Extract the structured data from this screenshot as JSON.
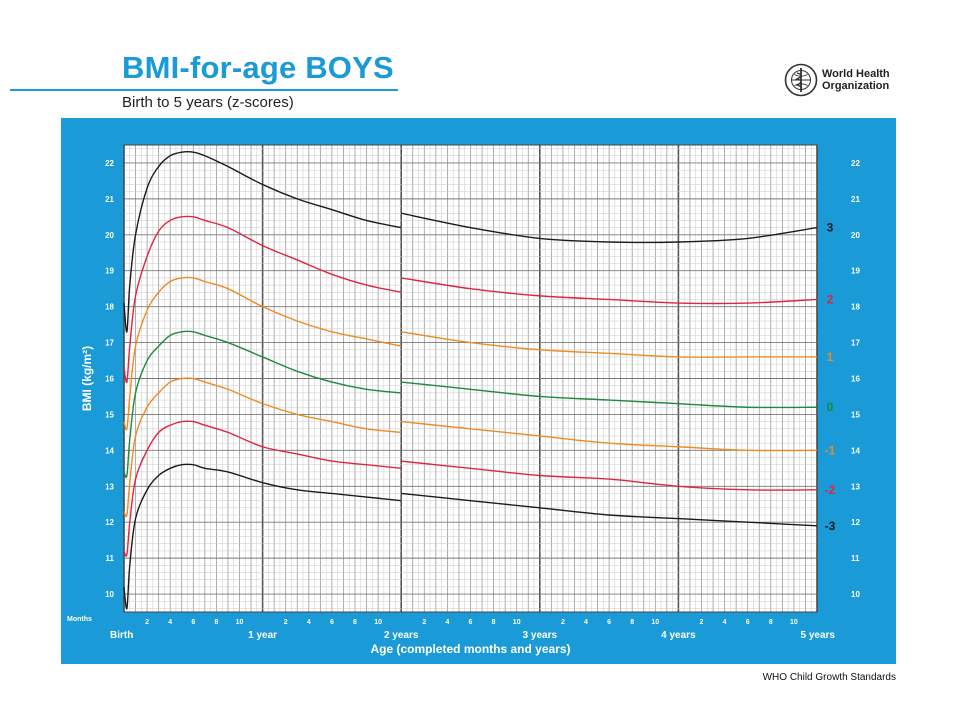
{
  "header": {
    "title": "BMI-for-age BOYS",
    "subtitle": "Birth to 5 years (z-scores)"
  },
  "logo": {
    "line1": "World Health",
    "line2": "Organization"
  },
  "footer": {
    "source": "WHO Child Growth Standards"
  },
  "colors": {
    "panel_blue": "#1a9ad6",
    "sd3": "#1b1b1b",
    "sd2": "#e0263f",
    "sd1": "#f08a24",
    "median": "#1e8a3a"
  },
  "chart_data": {
    "type": "line",
    "title": "BMI-for-age BOYS",
    "subtitle": "Birth to 5 years (z-scores)",
    "xlabel": "Age (completed months and years)",
    "ylabel": "BMI (kg/m²)",
    "x_unit_label": "Months",
    "x_unit": "months",
    "xlim": [
      0,
      60
    ],
    "ylim": [
      9.5,
      22.5
    ],
    "y_ticks": [
      10,
      11,
      12,
      13,
      14,
      15,
      16,
      17,
      18,
      19,
      20,
      21,
      22
    ],
    "x_month_ticks": [
      2,
      4,
      6,
      8,
      10
    ],
    "x_year_labels": [
      {
        "month": 0,
        "label": "Birth"
      },
      {
        "month": 12,
        "label": "1 year"
      },
      {
        "month": 24,
        "label": "2 years"
      },
      {
        "month": 36,
        "label": "3 years"
      },
      {
        "month": 48,
        "label": "4 years"
      },
      {
        "month": 60,
        "label": "5 years"
      }
    ],
    "grid": true,
    "series": [
      {
        "name": "3",
        "color": "#1b1b1b",
        "segments": [
          {
            "x": [
              0,
              0.25,
              0.5,
              1,
              2,
              3,
              4,
              5,
              6,
              7,
              9,
              12,
              15,
              18,
              21,
              24
            ],
            "y": [
              18.1,
              17.3,
              18.6,
              20.0,
              21.3,
              21.9,
              22.2,
              22.3,
              22.3,
              22.2,
              21.9,
              21.4,
              21.0,
              20.7,
              20.4,
              20.2
            ]
          },
          {
            "x": [
              24,
              30,
              36,
              42,
              48,
              54,
              60
            ],
            "y": [
              20.6,
              20.2,
              19.9,
              19.8,
              19.8,
              19.9,
              20.2
            ]
          }
        ]
      },
      {
        "name": "2",
        "color": "#e0263f",
        "segments": [
          {
            "x": [
              0,
              0.25,
              0.5,
              1,
              2,
              3,
              4,
              5,
              6,
              7,
              9,
              12,
              15,
              18,
              21,
              24
            ],
            "y": [
              16.3,
              15.9,
              16.9,
              18.3,
              19.4,
              20.1,
              20.4,
              20.5,
              20.5,
              20.4,
              20.2,
              19.7,
              19.3,
              18.9,
              18.6,
              18.4
            ]
          },
          {
            "x": [
              24,
              30,
              36,
              42,
              48,
              54,
              60
            ],
            "y": [
              18.8,
              18.5,
              18.3,
              18.2,
              18.1,
              18.1,
              18.2
            ]
          }
        ]
      },
      {
        "name": "1",
        "color": "#f08a24",
        "segments": [
          {
            "x": [
              0,
              0.25,
              0.5,
              1,
              2,
              3,
              4,
              5,
              6,
              7,
              9,
              12,
              15,
              18,
              21,
              24
            ],
            "y": [
              14.8,
              14.6,
              15.5,
              16.9,
              17.9,
              18.4,
              18.7,
              18.8,
              18.8,
              18.7,
              18.5,
              18.0,
              17.6,
              17.3,
              17.1,
              16.9
            ]
          },
          {
            "x": [
              24,
              30,
              36,
              42,
              48,
              54,
              60
            ],
            "y": [
              17.3,
              17.0,
              16.8,
              16.7,
              16.6,
              16.6,
              16.6
            ]
          }
        ]
      },
      {
        "name": "0",
        "color": "#1e8a3a",
        "segments": [
          {
            "x": [
              0,
              0.25,
              0.5,
              1,
              2,
              3,
              4,
              5,
              6,
              7,
              9,
              12,
              15,
              18,
              21,
              24
            ],
            "y": [
              13.4,
              13.3,
              14.3,
              15.6,
              16.5,
              16.9,
              17.2,
              17.3,
              17.3,
              17.2,
              17.0,
              16.6,
              16.2,
              15.9,
              15.7,
              15.6
            ]
          },
          {
            "x": [
              24,
              30,
              36,
              42,
              48,
              54,
              60
            ],
            "y": [
              15.9,
              15.7,
              15.5,
              15.4,
              15.3,
              15.2,
              15.2
            ]
          }
        ]
      },
      {
        "name": "-1",
        "color": "#f08a24",
        "segments": [
          {
            "x": [
              0,
              0.25,
              0.5,
              1,
              2,
              3,
              4,
              5,
              6,
              7,
              9,
              12,
              15,
              18,
              21,
              24
            ],
            "y": [
              12.3,
              12.2,
              13.1,
              14.4,
              15.2,
              15.6,
              15.9,
              16.0,
              16.0,
              15.9,
              15.7,
              15.3,
              15.0,
              14.8,
              14.6,
              14.5
            ]
          },
          {
            "x": [
              24,
              30,
              36,
              42,
              48,
              54,
              60
            ],
            "y": [
              14.8,
              14.6,
              14.4,
              14.2,
              14.1,
              14.0,
              14.0
            ]
          }
        ]
      },
      {
        "name": "-2",
        "color": "#e0263f",
        "segments": [
          {
            "x": [
              0,
              0.25,
              0.5,
              1,
              2,
              3,
              4,
              5,
              6,
              7,
              9,
              12,
              15,
              18,
              21,
              24
            ],
            "y": [
              11.2,
              11.1,
              12.0,
              13.2,
              14.0,
              14.5,
              14.7,
              14.8,
              14.8,
              14.7,
              14.5,
              14.1,
              13.9,
              13.7,
              13.6,
              13.5
            ]
          },
          {
            "x": [
              24,
              30,
              36,
              42,
              48,
              54,
              60
            ],
            "y": [
              13.7,
              13.5,
              13.3,
              13.2,
              13.0,
              12.9,
              12.9
            ]
          }
        ]
      },
      {
        "name": "-3",
        "color": "#1b1b1b",
        "segments": [
          {
            "x": [
              0,
              0.25,
              0.5,
              1,
              2,
              3,
              4,
              5,
              6,
              7,
              9,
              12,
              15,
              18,
              21,
              24
            ],
            "y": [
              10.2,
              9.6,
              10.8,
              12.1,
              12.9,
              13.3,
              13.5,
              13.6,
              13.6,
              13.5,
              13.4,
              13.1,
              12.9,
              12.8,
              12.7,
              12.6
            ]
          },
          {
            "x": [
              24,
              30,
              36,
              42,
              48,
              54,
              60
            ],
            "y": [
              12.8,
              12.6,
              12.4,
              12.2,
              12.1,
              12.0,
              11.9
            ]
          }
        ]
      }
    ]
  }
}
